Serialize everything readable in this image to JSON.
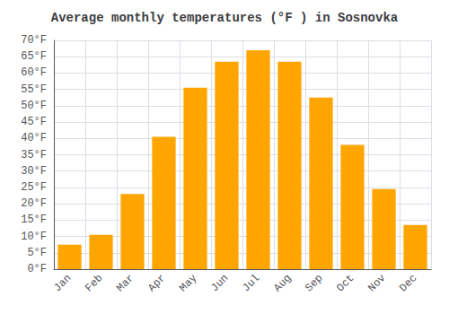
{
  "chart_data": {
    "type": "bar",
    "title": "Average monthly temperatures (°F ) in Sosnovka",
    "categories": [
      "Jan",
      "Feb",
      "Mar",
      "Apr",
      "May",
      "Jun",
      "Jul",
      "Aug",
      "Sep",
      "Oct",
      "Nov",
      "Dec"
    ],
    "values": [
      7.5,
      10.5,
      23,
      40.5,
      55.5,
      63.5,
      67,
      63.5,
      52.5,
      38,
      24.5,
      13.5
    ],
    "color": "#FFA500",
    "ylim": [
      0,
      70
    ],
    "yticks": [
      {
        "value": 0,
        "label": "0°F"
      },
      {
        "value": 5,
        "label": "5°F"
      },
      {
        "value": 10,
        "label": "10°F"
      },
      {
        "value": 15,
        "label": "15°F"
      },
      {
        "value": 20,
        "label": "20°F"
      },
      {
        "value": 25,
        "label": "25°F"
      },
      {
        "value": 30,
        "label": "30°F"
      },
      {
        "value": 35,
        "label": "35°F"
      },
      {
        "value": 40,
        "label": "40°F"
      },
      {
        "value": 45,
        "label": "45°F"
      },
      {
        "value": 50,
        "label": "50°F"
      },
      {
        "value": 55,
        "label": "55°F"
      },
      {
        "value": 60,
        "label": "60°F"
      },
      {
        "value": 65,
        "label": "65°F"
      },
      {
        "value": 70,
        "label": "70°F"
      }
    ],
    "grid": true
  }
}
